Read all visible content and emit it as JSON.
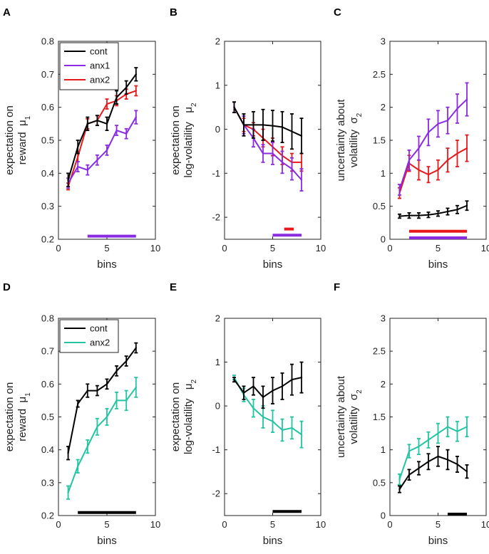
{
  "figure": {
    "colors": {
      "cont": "#000000",
      "anx1": "#8a2be2",
      "anx2_red": "#e8191b",
      "anx2_teal": "#22c4a2"
    },
    "panels": [
      {
        "panel_label": "A",
        "title": "",
        "xlabel": "bins",
        "ylabel_lines": [
          "expectation on",
          "reward  μ"
        ],
        "ylabel_sub": "1",
        "xlim": [
          0,
          10
        ],
        "ylim": [
          0.2,
          0.8
        ],
        "xticks": [
          0,
          5,
          10
        ],
        "yticks": [
          0.2,
          0.3,
          0.4,
          0.5,
          0.6,
          0.7,
          0.8
        ],
        "ytick_labels": [
          "0.2",
          "0.3",
          "0.4",
          "0.5",
          "0.6",
          "0.7",
          "0.8"
        ],
        "legend": [
          {
            "name": "cont",
            "color": "#000000"
          },
          {
            "name": "anx1",
            "color": "#8a2be2"
          },
          {
            "name": "anx2",
            "color": "#e8191b"
          }
        ],
        "chart_data": {
          "type": "line",
          "x": [
            1,
            2,
            3,
            4,
            5,
            6,
            7,
            8
          ],
          "series": [
            {
              "name": "cont",
              "color": "#000000",
              "values": [
                0.38,
                0.48,
                0.55,
                0.56,
                0.55,
                0.63,
                0.66,
                0.7
              ],
              "err": [
                0.02,
                0.02,
                0.02,
                0.015,
                0.02,
                0.02,
                0.02,
                0.02
              ]
            },
            {
              "name": "anx1",
              "color": "#8a2be2",
              "values": [
                0.37,
                0.42,
                0.41,
                0.44,
                0.47,
                0.53,
                0.52,
                0.57
              ],
              "err": [
                0.015,
                0.015,
                0.015,
                0.015,
                0.015,
                0.015,
                0.015,
                0.02
              ]
            },
            {
              "name": "anx2",
              "color": "#e8191b",
              "values": [
                0.36,
                0.45,
                0.55,
                0.56,
                0.61,
                0.62,
                0.64,
                0.65
              ],
              "err": [
                0.01,
                0.015,
                0.015,
                0.015,
                0.015,
                0.015,
                0.015,
                0.015
              ]
            }
          ],
          "sig_bars": [
            {
              "color": "#8a2be2",
              "x": [
                3,
                8
              ],
              "y": 0.205
            }
          ]
        }
      },
      {
        "panel_label": "B",
        "title": "",
        "xlabel": "bins",
        "ylabel_lines": [
          "expectation on",
          "log-volatility   μ"
        ],
        "ylabel_sub": "2",
        "xlim": [
          0,
          10
        ],
        "ylim": [
          -2.5,
          2
        ],
        "xticks": [
          0,
          5,
          10
        ],
        "yticks": [
          -2,
          -1,
          0,
          1,
          2
        ],
        "ytick_labels": [
          "-2",
          "-1",
          "0",
          "1",
          "2"
        ],
        "legend": [],
        "chart_data": {
          "type": "line",
          "x": [
            1,
            2,
            3,
            4,
            5,
            6,
            7,
            8
          ],
          "series": [
            {
              "name": "cont",
              "color": "#000000",
              "values": [
                0.5,
                0.1,
                0.1,
                0.1,
                0.08,
                0.05,
                -0.05,
                -0.15
              ],
              "err": [
                0.12,
                0.25,
                0.3,
                0.35,
                0.35,
                0.35,
                0.4,
                0.4
              ]
            },
            {
              "name": "anx1",
              "color": "#8a2be2",
              "values": [
                0.5,
                0.1,
                -0.2,
                -0.55,
                -0.55,
                -0.75,
                -0.9,
                -1.15
              ],
              "err": [
                0.12,
                0.2,
                0.2,
                0.2,
                0.25,
                0.25,
                0.25,
                0.25
              ]
            },
            {
              "name": "anx2",
              "color": "#e8191b",
              "values": [
                0.5,
                0.1,
                0.0,
                -0.2,
                -0.4,
                -0.6,
                -0.75,
                -0.75
              ],
              "err": [
                0.12,
                0.15,
                0.15,
                0.2,
                0.2,
                0.2,
                0.2,
                0.2
              ]
            }
          ],
          "sig_bars": [
            {
              "color": "#e8191b",
              "x": [
                6.2,
                7.2
              ],
              "y": -2.3
            },
            {
              "color": "#8a2be2",
              "x": [
                5,
                8
              ],
              "y": -2.44
            }
          ]
        }
      },
      {
        "panel_label": "C",
        "title": "",
        "xlabel": "bins",
        "ylabel_lines": [
          "uncertainty about",
          "volatility  σ"
        ],
        "ylabel_sub": "2",
        "xlim": [
          0,
          10
        ],
        "ylim": [
          0,
          3
        ],
        "xticks": [
          0,
          5,
          10
        ],
        "yticks": [
          0,
          0.5,
          1,
          1.5,
          2,
          2.5,
          3
        ],
        "ytick_labels": [
          "0",
          "0.5",
          "1",
          "1.5",
          "2",
          "2.5",
          "3"
        ],
        "legend": [],
        "chart_data": {
          "type": "line",
          "x": [
            1,
            2,
            3,
            4,
            5,
            6,
            7,
            8
          ],
          "series": [
            {
              "name": "cont",
              "color": "#000000",
              "values": [
                0.35,
                0.36,
                0.36,
                0.37,
                0.39,
                0.42,
                0.45,
                0.51
              ],
              "err": [
                0.03,
                0.04,
                0.04,
                0.04,
                0.04,
                0.05,
                0.06,
                0.07
              ]
            },
            {
              "name": "anx1",
              "color": "#8a2be2",
              "values": [
                0.75,
                1.2,
                1.38,
                1.62,
                1.75,
                1.8,
                1.98,
                2.12
              ],
              "err": [
                0.08,
                0.15,
                0.18,
                0.2,
                0.2,
                0.2,
                0.22,
                0.25
              ]
            },
            {
              "name": "anx2",
              "color": "#e8191b",
              "values": [
                0.7,
                1.15,
                1.05,
                0.98,
                1.05,
                1.2,
                1.3,
                1.38
              ],
              "err": [
                0.08,
                0.12,
                0.15,
                0.12,
                0.15,
                0.18,
                0.2,
                0.2
              ]
            }
          ],
          "sig_bars": [
            {
              "color": "#e8191b",
              "x": [
                2,
                8
              ],
              "y": 0.1
            },
            {
              "color": "#8a2be2",
              "x": [
                2,
                8
              ],
              "y": 0.0
            }
          ]
        }
      },
      {
        "panel_label": "D",
        "title": "",
        "xlabel": "bins",
        "ylabel_lines": [
          "expectation on",
          "reward  μ"
        ],
        "ylabel_sub": "1",
        "xlim": [
          0,
          10
        ],
        "ylim": [
          0.2,
          0.8
        ],
        "xticks": [
          0,
          5,
          10
        ],
        "yticks": [
          0.2,
          0.3,
          0.4,
          0.5,
          0.6,
          0.7,
          0.8
        ],
        "ytick_labels": [
          "0.2",
          "0.3",
          "0.4",
          "0.5",
          "0.6",
          "0.7",
          "0.8"
        ],
        "legend": [
          {
            "name": "cont",
            "color": "#000000"
          },
          {
            "name": "anx2",
            "color": "#22c4a2"
          }
        ],
        "chart_data": {
          "type": "line",
          "x": [
            1,
            2,
            3,
            4,
            5,
            6,
            7,
            8
          ],
          "series": [
            {
              "name": "cont",
              "color": "#000000",
              "values": [
                0.39,
                0.54,
                0.58,
                0.58,
                0.6,
                0.64,
                0.67,
                0.71
              ],
              "err": [
                0.02,
                0.01,
                0.02,
                0.015,
                0.015,
                0.015,
                0.015,
                0.015
              ]
            },
            {
              "name": "anx2",
              "color": "#22c4a2",
              "values": [
                0.27,
                0.35,
                0.41,
                0.47,
                0.5,
                0.55,
                0.55,
                0.59
              ],
              "err": [
                0.02,
                0.02,
                0.02,
                0.025,
                0.025,
                0.025,
                0.03,
                0.03
              ]
            }
          ],
          "sig_bars": [
            {
              "color": "#000000",
              "x": [
                2,
                8
              ],
              "y": 0.205
            }
          ]
        }
      },
      {
        "panel_label": "E",
        "title": "",
        "xlabel": "bins",
        "ylabel_lines": [
          "expectation on",
          "log-volatility   μ"
        ],
        "ylabel_sub": "2",
        "xlim": [
          0,
          10
        ],
        "ylim": [
          -2.5,
          2
        ],
        "xticks": [
          0,
          5,
          10
        ],
        "yticks": [
          -2,
          -1,
          0,
          1,
          2
        ],
        "ytick_labels": [
          "-2",
          "-1",
          "0",
          "1",
          "2"
        ],
        "legend": [],
        "chart_data": {
          "type": "line",
          "x": [
            1,
            2,
            3,
            4,
            5,
            6,
            7,
            8
          ],
          "series": [
            {
              "name": "cont",
              "color": "#000000",
              "values": [
                0.6,
                0.3,
                0.45,
                0.2,
                0.35,
                0.45,
                0.6,
                0.65
              ],
              "err": [
                0.05,
                0.15,
                0.2,
                0.25,
                0.3,
                0.3,
                0.35,
                0.35
              ]
            },
            {
              "name": "anx2",
              "color": "#22c4a2",
              "values": [
                0.65,
                0.25,
                -0.05,
                -0.25,
                -0.35,
                -0.55,
                -0.5,
                -0.65
              ],
              "err": [
                0.05,
                0.15,
                0.2,
                0.25,
                0.25,
                0.25,
                0.25,
                0.3
              ]
            }
          ],
          "sig_bars": [
            {
              "color": "#000000",
              "x": [
                5,
                8
              ],
              "y": -2.44
            }
          ]
        }
      },
      {
        "panel_label": "F",
        "title": "",
        "xlabel": "bins",
        "ylabel_lines": [
          "uncertainty about",
          "volatility  σ"
        ],
        "ylabel_sub": "2",
        "xlim": [
          0,
          10
        ],
        "ylim": [
          0,
          3
        ],
        "xticks": [
          0,
          5,
          10
        ],
        "yticks": [
          0,
          0.5,
          1,
          1.5,
          2,
          2.5,
          3
        ],
        "ytick_labels": [
          "0",
          "0.5",
          "1",
          "1.5",
          "2",
          "2.5",
          "3"
        ],
        "legend": [],
        "chart_data": {
          "type": "line",
          "x": [
            1,
            2,
            3,
            4,
            5,
            6,
            7,
            8
          ],
          "series": [
            {
              "name": "cont",
              "color": "#000000",
              "values": [
                0.4,
                0.62,
                0.72,
                0.82,
                0.9,
                0.85,
                0.78,
                0.67
              ],
              "err": [
                0.05,
                0.08,
                0.1,
                0.12,
                0.15,
                0.15,
                0.12,
                0.1
              ]
            },
            {
              "name": "anx2",
              "color": "#22c4a2",
              "values": [
                0.55,
                0.98,
                1.05,
                1.15,
                1.25,
                1.35,
                1.28,
                1.35
              ],
              "err": [
                0.08,
                0.1,
                0.12,
                0.12,
                0.15,
                0.15,
                0.15,
                0.15
              ]
            }
          ],
          "sig_bars": [
            {
              "color": "#000000",
              "x": [
                6,
                8
              ],
              "y": 0.0
            }
          ]
        }
      }
    ]
  }
}
